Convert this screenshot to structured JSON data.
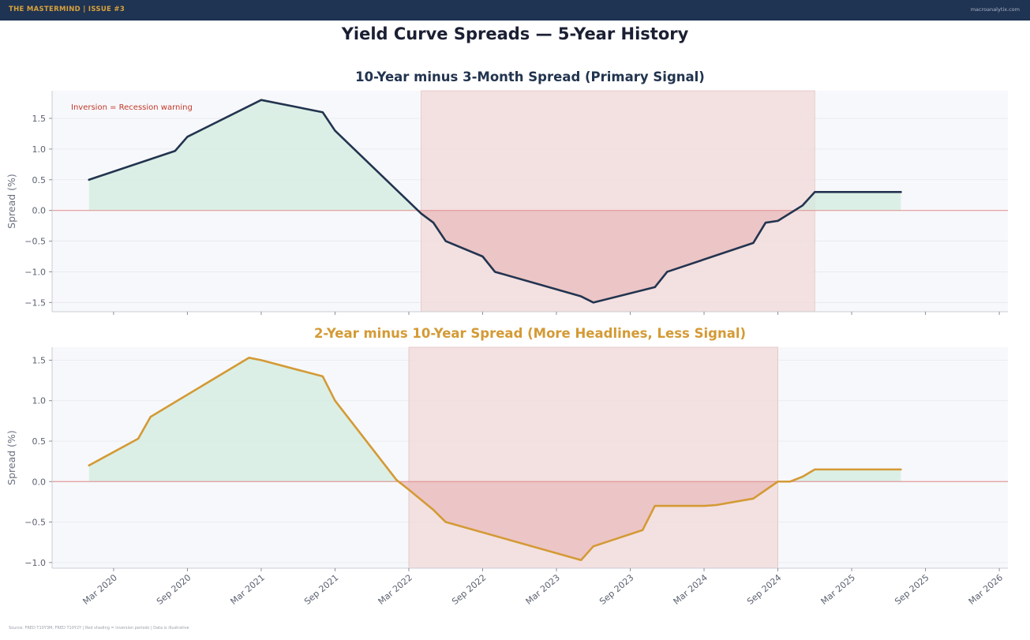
{
  "header": {
    "brand": "THE MASTERMIND  |  ISSUE #3",
    "site": "macroanalytix.com"
  },
  "page_title": "Yield Curve Spreads — 5-Year History",
  "footer": "Source: FRED T10Y3M, FRED T10Y2Y  |  Red shading = inversion periods  |  Data is illustrative",
  "colors": {
    "navy": "#22344f",
    "gold": "#d49a35",
    "positive_fill": "#d2ecdf",
    "negative_fill": "#e9bcbc",
    "inversion_band": "#f2dcdc",
    "zero_line": "#e08c8c",
    "plot_bg": "#f7f8fb"
  },
  "chart_data": [
    {
      "type": "area",
      "title": "10-Year minus 3-Month Spread (Primary Signal)",
      "ylabel": "Spread (%)",
      "xlabel": "",
      "ylim": [
        -1.65,
        1.95
      ],
      "yticks": [
        1.5,
        1.0,
        0.5,
        0.0,
        -0.5,
        -1.0,
        -1.5
      ],
      "ytick_labels": [
        "1.5",
        "1.0",
        "0.5",
        "0.0",
        "−0.5",
        "−1.0",
        "−1.5"
      ],
      "annotation": "Inversion = Recession warning",
      "grid": true,
      "inversion_period": [
        "2022-04",
        "2024-12"
      ],
      "series": [
        {
          "name": "10Y-3M",
          "x": [
            "2020-01",
            "2020-08",
            "2020-09",
            "2021-03",
            "2021-08",
            "2021-09",
            "2022-04",
            "2022-05",
            "2022-06",
            "2022-09",
            "2022-10",
            "2023-05",
            "2023-06",
            "2023-11",
            "2023-12",
            "2024-07",
            "2024-08",
            "2024-09",
            "2024-11",
            "2024-12",
            "2025-07"
          ],
          "values": [
            0.5,
            0.97,
            1.2,
            1.8,
            1.6,
            1.3,
            -0.05,
            -0.2,
            -0.5,
            -0.75,
            -1.0,
            -1.4,
            -1.5,
            -1.25,
            -1.0,
            -0.53,
            -0.2,
            -0.17,
            0.08,
            0.3,
            0.3
          ]
        }
      ]
    },
    {
      "type": "area",
      "title": "2-Year minus 10-Year Spread (More Headlines, Less Signal)",
      "ylabel": "Spread (%)",
      "xlabel": "",
      "ylim": [
        -1.07,
        1.66
      ],
      "yticks": [
        1.5,
        1.0,
        0.5,
        0.0,
        -0.5,
        -1.0
      ],
      "ytick_labels": [
        "1.5",
        "1.0",
        "0.5",
        "0.0",
        "−0.5",
        "−1.0"
      ],
      "grid": true,
      "inversion_period": [
        "2022-03",
        "2024-09"
      ],
      "series": [
        {
          "name": "2Y-10Y",
          "x": [
            "2020-01",
            "2020-05",
            "2020-06",
            "2021-02",
            "2021-03",
            "2021-08",
            "2021-09",
            "2022-02",
            "2022-03",
            "2022-05",
            "2022-06",
            "2023-05",
            "2023-06",
            "2023-10",
            "2023-11",
            "2024-03",
            "2024-04",
            "2024-07",
            "2024-09",
            "2024-10",
            "2024-11",
            "2024-12",
            "2025-07"
          ],
          "values": [
            0.2,
            0.53,
            0.8,
            1.53,
            1.5,
            1.3,
            1.0,
            0.02,
            -0.1,
            -0.35,
            -0.5,
            -0.97,
            -0.8,
            -0.6,
            -0.3,
            -0.3,
            -0.29,
            -0.21,
            0.0,
            0.0,
            0.06,
            0.15,
            0.15
          ]
        }
      ]
    }
  ],
  "x_axis": {
    "ticks": [
      "2020-03",
      "2020-09",
      "2021-03",
      "2021-09",
      "2022-03",
      "2022-09",
      "2023-03",
      "2023-09",
      "2024-03",
      "2024-09",
      "2025-03",
      "2025-09",
      "2026-03"
    ],
    "tick_labels": [
      "Mar 2020",
      "Sep 2020",
      "Mar 2021",
      "Sep 2021",
      "Mar 2022",
      "Sep 2022",
      "Mar 2023",
      "Sep 2023",
      "Mar 2024",
      "Sep 2024",
      "Mar 2025",
      "Sep 2025",
      "Mar 2026"
    ]
  }
}
